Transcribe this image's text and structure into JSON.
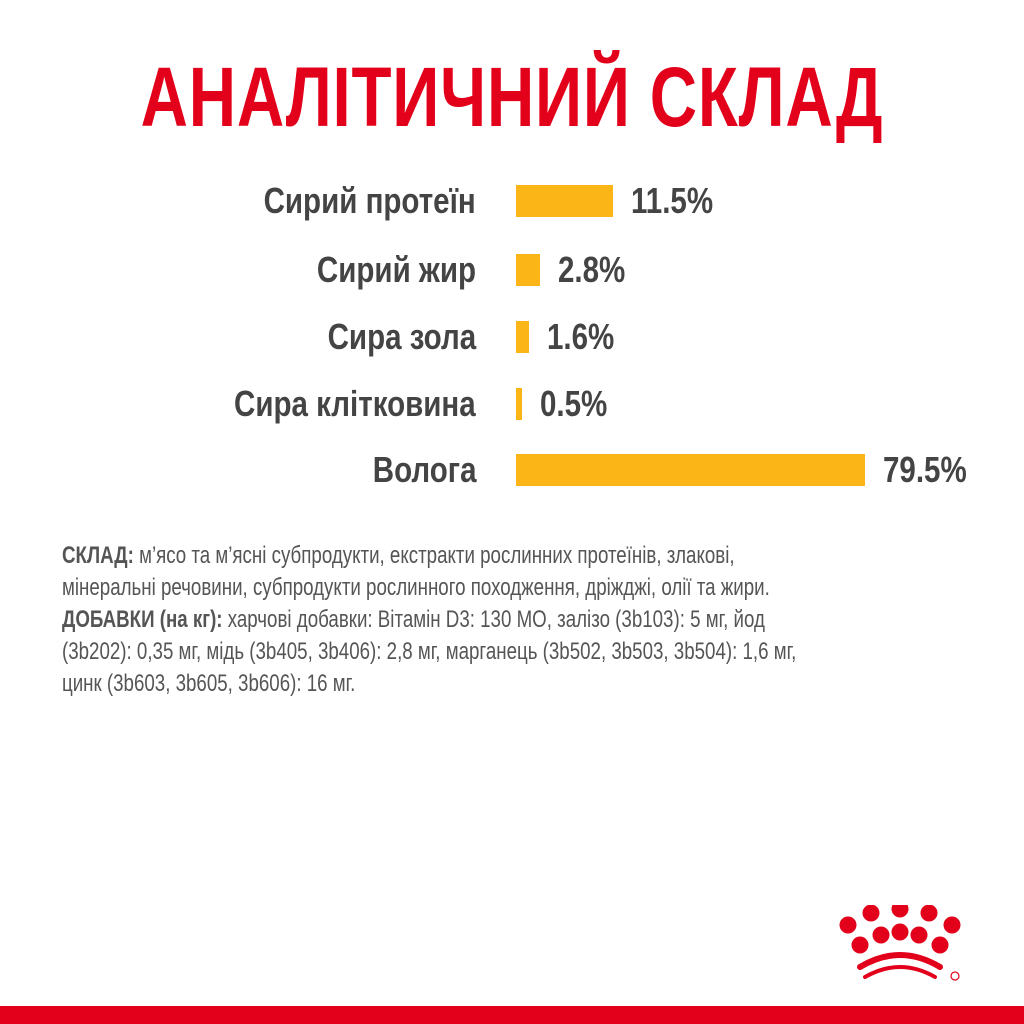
{
  "chart_data": {
    "type": "bar",
    "title": "АНАЛІТИЧНИЙ СКЛАД",
    "categories": [
      "Сирий протеїн",
      "Сирий жир",
      "Сира зола",
      "Сира клітковина",
      "Волога"
    ],
    "values": [
      11.5,
      2.8,
      1.6,
      0.5,
      79.5
    ],
    "value_labels": [
      "11.5%",
      "2.8%",
      "1.6%",
      "0.5%",
      "79.5%"
    ],
    "orientation": "horizontal",
    "unit": "%",
    "bar_color": "#fbb516",
    "grid": false
  },
  "composition": {
    "label": "СКЛАД:",
    "text": " м’ясо та м’ясні субпродукти, екстракти рослинних протеїнів, злакові,",
    "text2": "мінеральні речовини, субпродукти рослинного походження, дріжджі, олії та жири."
  },
  "additives": {
    "label": "ДОБАВКИ (на кг):",
    "text": " харчові добавки: Вітамін D3: 130 МО, залізо (3b103): 5 мг, йод",
    "text2": "(3b202): 0,35 мг, мідь (3b405, 3b406): 2,8 мг, марганець (3b502, 3b503, 3b504): 1,6 мг,",
    "text3": "цинк (3b603, 3b605, 3b606): 16 мг."
  },
  "colors": {
    "brand_red": "#e2001a",
    "bar": "#fbb516",
    "text": "#444444"
  },
  "logo": {
    "icon": "royal-canin-crown-icon"
  }
}
